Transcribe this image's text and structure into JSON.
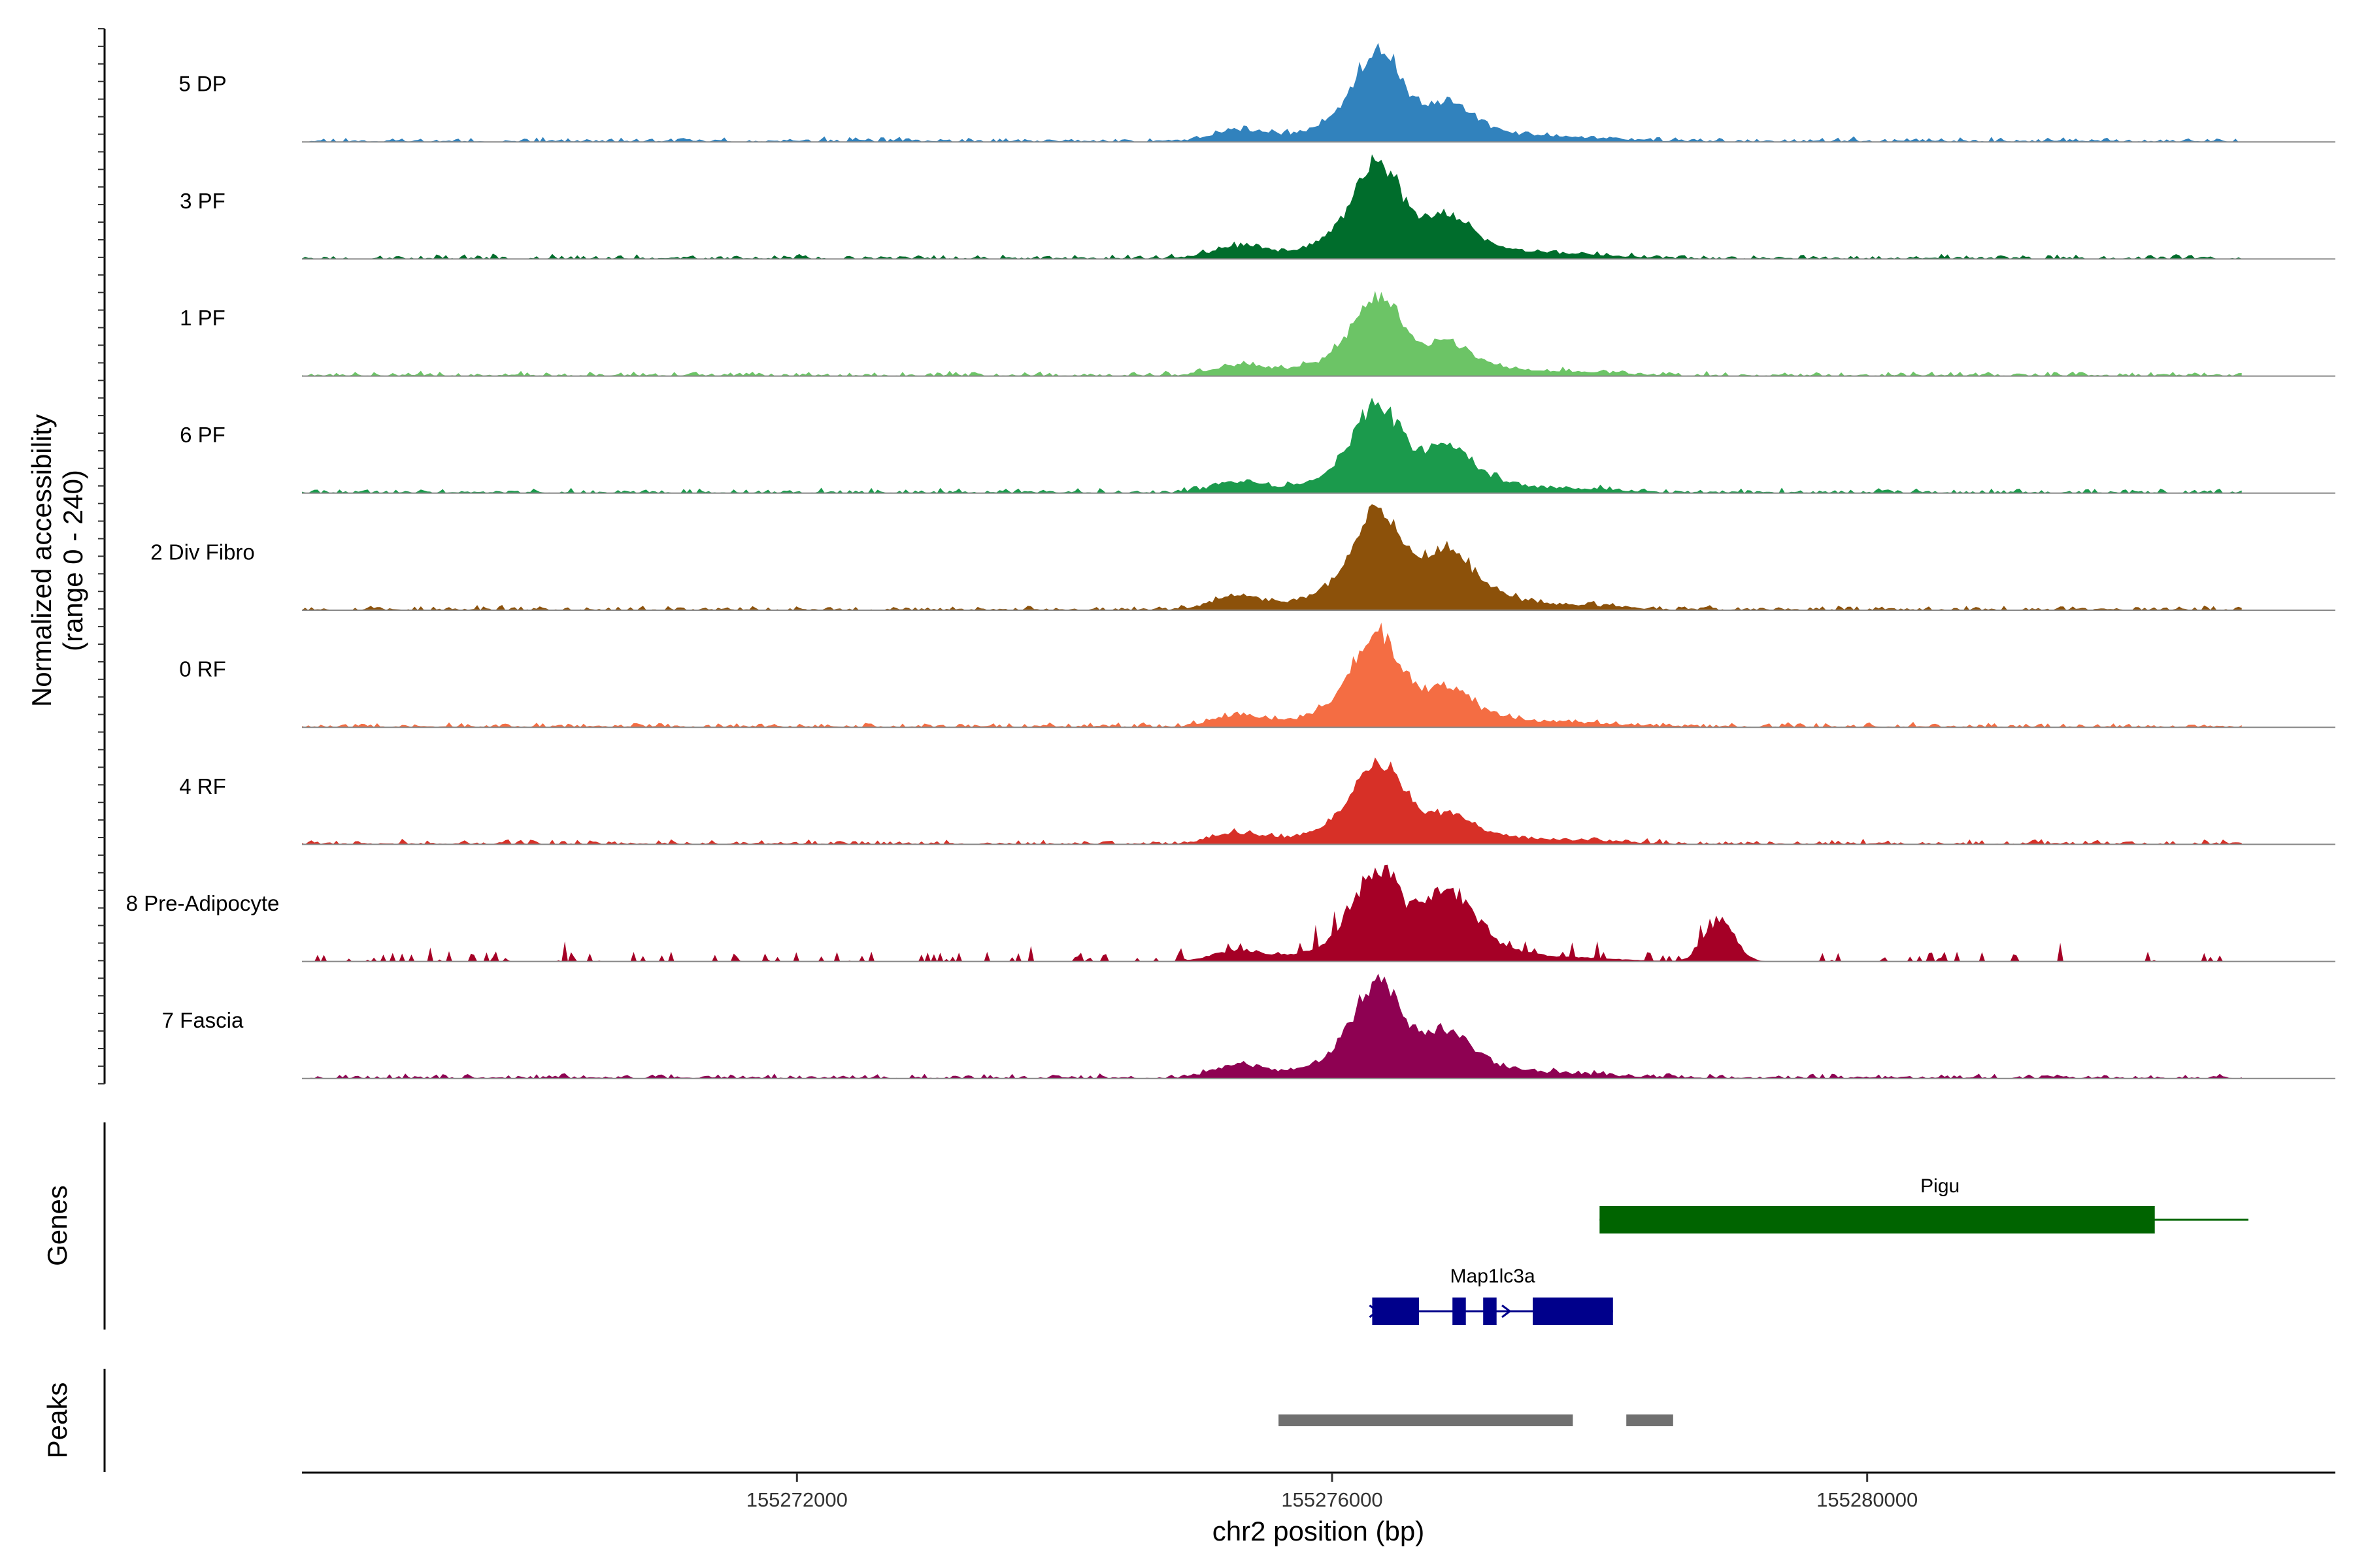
{
  "chart_data": {
    "type": "area",
    "xlabel": "chr2 position (bp)",
    "ylabel_line1": "Normalized accessibility",
    "ylabel_line2": "(range 0 - 240)",
    "ylim": [
      0,
      240
    ],
    "xlim": [
      155268300,
      155283500
    ],
    "xticks": [
      155272000,
      155276000,
      155280000
    ],
    "xtick_labels": [
      "155272000",
      "155276000",
      "155280000"
    ],
    "tracks": [
      {
        "name": "5 DP",
        "color": "#3182bd",
        "mode": "smooth",
        "peak1": 190,
        "peak2": 72,
        "seed": 11
      },
      {
        "name": "3 PF",
        "color": "#006d2c",
        "mode": "smooth",
        "peak1": 200,
        "peak2": 78,
        "seed": 23
      },
      {
        "name": "1 PF",
        "color": "#6cc466",
        "mode": "smooth",
        "peak1": 170,
        "peak2": 58,
        "seed": 37
      },
      {
        "name": "6 PF",
        "color": "#1b9a4c",
        "mode": "smooth",
        "peak1": 180,
        "peak2": 85,
        "seed": 41
      },
      {
        "name": "2 Div Fibro",
        "color": "#8c510a",
        "mode": "smooth",
        "peak1": 215,
        "peak2": 115,
        "seed": 53
      },
      {
        "name": "0 RF",
        "color": "#f46d43",
        "mode": "smooth",
        "peak1": 195,
        "peak2": 70,
        "seed": 61
      },
      {
        "name": "4 RF",
        "color": "#d73027",
        "mode": "smooth",
        "peak1": 175,
        "peak2": 55,
        "seed": 73
      },
      {
        "name": "8 Pre-Adipocyte",
        "color": "#a50026",
        "mode": "sparse",
        "peak1": 185,
        "peak2": 135,
        "seed": 89
      },
      {
        "name": "7 Fascia",
        "color": "#8e0152",
        "mode": "smooth",
        "peak1": 200,
        "peak2": 85,
        "seed": 97
      }
    ],
    "genes_label": "Genes",
    "peaks_label": "Peaks",
    "genes": [
      {
        "name": "Pigu",
        "color": "#006400",
        "start": 155278000,
        "end": 155282850,
        "exons": [
          [
            155278000,
            155282150
          ]
        ]
      },
      {
        "name": "Map1lc3a",
        "color": "#00008b",
        "start": 155276300,
        "end": 155278100,
        "exons": [
          [
            155276300,
            155276650
          ],
          [
            155276900,
            155277000
          ],
          [
            155277130,
            155277230
          ],
          [
            155277500,
            155278100
          ]
        ],
        "arrows": [
          155276310,
          155277300
        ]
      }
    ],
    "peaks": [
      [
        155275600,
        155277800
      ],
      [
        155278200,
        155278550
      ]
    ],
    "peak_color": "#707070"
  }
}
